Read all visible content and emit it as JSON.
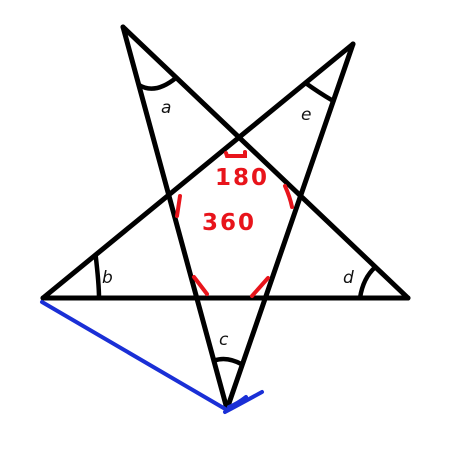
{
  "colors": {
    "star": "#000000",
    "annotation": "#e8141b",
    "extension": "#1a2fd6"
  },
  "angles": {
    "a": "a",
    "b": "b",
    "c": "c",
    "d": "d",
    "e": "e"
  },
  "annotations": {
    "top": "180",
    "middle": "360"
  }
}
